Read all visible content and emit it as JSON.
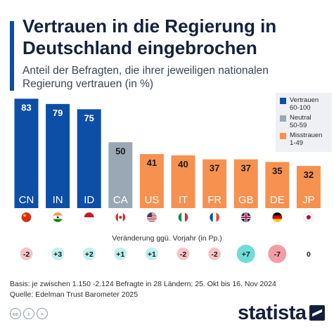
{
  "chart_data": {
    "type": "bar",
    "title": "Vertrauen in die Regierung in Deutschland eingebrochen",
    "subtitle": "Anteil der Befragten, die ihrer jeweiligen nationalen Regierung vertrauen (in %)",
    "categories": [
      "CN",
      "IN",
      "ID",
      "CA",
      "US",
      "IT",
      "FR",
      "GB",
      "DE",
      "JP"
    ],
    "values": [
      83,
      79,
      75,
      50,
      41,
      40,
      37,
      37,
      35,
      32
    ],
    "groups": [
      "trust",
      "trust",
      "trust",
      "neutral",
      "distrust",
      "distrust",
      "distrust",
      "distrust",
      "distrust",
      "distrust"
    ],
    "flags": [
      "china-flag-icon",
      "india-flag-icon",
      "indonesia-flag-icon",
      "canada-flag-icon",
      "usa-flag-icon",
      "italy-flag-icon",
      "france-flag-icon",
      "uk-flag-icon",
      "germany-flag-icon",
      "japan-flag-icon"
    ],
    "legend": [
      {
        "group": "trust",
        "label": "Vertrauen",
        "range": "60-100",
        "color": "#0d4ea6"
      },
      {
        "group": "neutral",
        "label": "Neutral",
        "range": "50-59",
        "color": "#9aa8b5"
      },
      {
        "group": "distrust",
        "label": "Misstrauen",
        "range": "1-49",
        "color": "#f7914f"
      }
    ],
    "legend_position": "top-right",
    "ylim": [
      0,
      100
    ],
    "grid": false,
    "change_label": "Veränderung ggü. Vorjahr (in Pp.)",
    "changes": [
      "-2",
      "+3",
      "+2",
      "+1",
      "+1",
      "-2",
      "-2",
      "+7",
      "-7",
      "0"
    ],
    "change_values": [
      -2,
      3,
      2,
      1,
      1,
      -2,
      -2,
      7,
      -7,
      0
    ]
  },
  "colors": {
    "negative_bg": "#f6c4c8",
    "positive_bg": "#bff0ef",
    "positive_strong": "#6fdcd7",
    "negative_strong": "#f39ca3"
  },
  "footer": {
    "basis": "Basis: je zwischen 1.150 -2.124 Befragte in 28 Ländern; 25. Okt bis 16. Nov 2024",
    "source": "Quelle: Edelman Trust Barometer 2025"
  },
  "brand": {
    "name": "statista",
    "icons": [
      "cc-icon",
      "by-icon",
      "nd-icon"
    ]
  }
}
